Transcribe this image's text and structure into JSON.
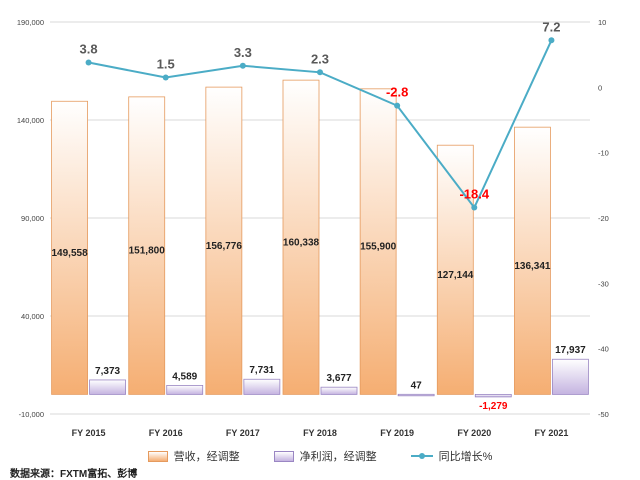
{
  "chart_data": {
    "type": "bar",
    "categories": [
      "FY 2015",
      "FY 2016",
      "FY 2017",
      "FY 2018",
      "FY 2019",
      "FY 2020",
      "FY 2021"
    ],
    "series": [
      {
        "name": "营收，经调整",
        "kind": "bar",
        "axis": "left",
        "color": "#f5ae72",
        "values": [
          149558,
          151800,
          156776,
          160338,
          155900,
          127144,
          136341
        ],
        "labels": [
          "149,558",
          "151,800",
          "156,776",
          "160,338",
          "155,900",
          "127,144",
          "136,341"
        ]
      },
      {
        "name": "净利润，经调整",
        "kind": "bar",
        "axis": "left",
        "color": "#c4b3e0",
        "values": [
          7373,
          4589,
          7731,
          3677,
          47,
          -1279,
          17937
        ],
        "labels": [
          "7,373",
          "4,589",
          "7,731",
          "3,677",
          "47",
          "-1,279",
          "17,937"
        ]
      },
      {
        "name": "同比增长%",
        "kind": "line",
        "axis": "right",
        "color": "#4bacc6",
        "values": [
          3.8,
          1.5,
          3.3,
          2.3,
          -2.8,
          -18.4,
          7.2
        ],
        "labels": [
          "3.8",
          "1.5",
          "3.3",
          "2.3",
          "-2.8",
          "-18.4",
          "7.2"
        ]
      }
    ],
    "left_axis": {
      "ylim": [
        -10000,
        190000
      ],
      "ticks": [
        -10000,
        40000,
        90000,
        140000,
        190000
      ],
      "tick_labels": [
        "-10,000",
        "40,000",
        "90,000",
        "140,000",
        "190,000"
      ]
    },
    "right_axis": {
      "ylim": [
        -50,
        10
      ],
      "ticks": [
        -50,
        -40,
        -30,
        -20,
        -10,
        0,
        10
      ],
      "tick_labels": [
        "-50",
        "-40",
        "-30",
        "-20",
        "-10",
        "0",
        "10"
      ]
    },
    "grid": true,
    "legend_position": "bottom",
    "colors": {
      "positive_label": "#595959",
      "negative_label": "#ff0000"
    }
  },
  "source": "数据来源：FXTM富拓、彭博"
}
